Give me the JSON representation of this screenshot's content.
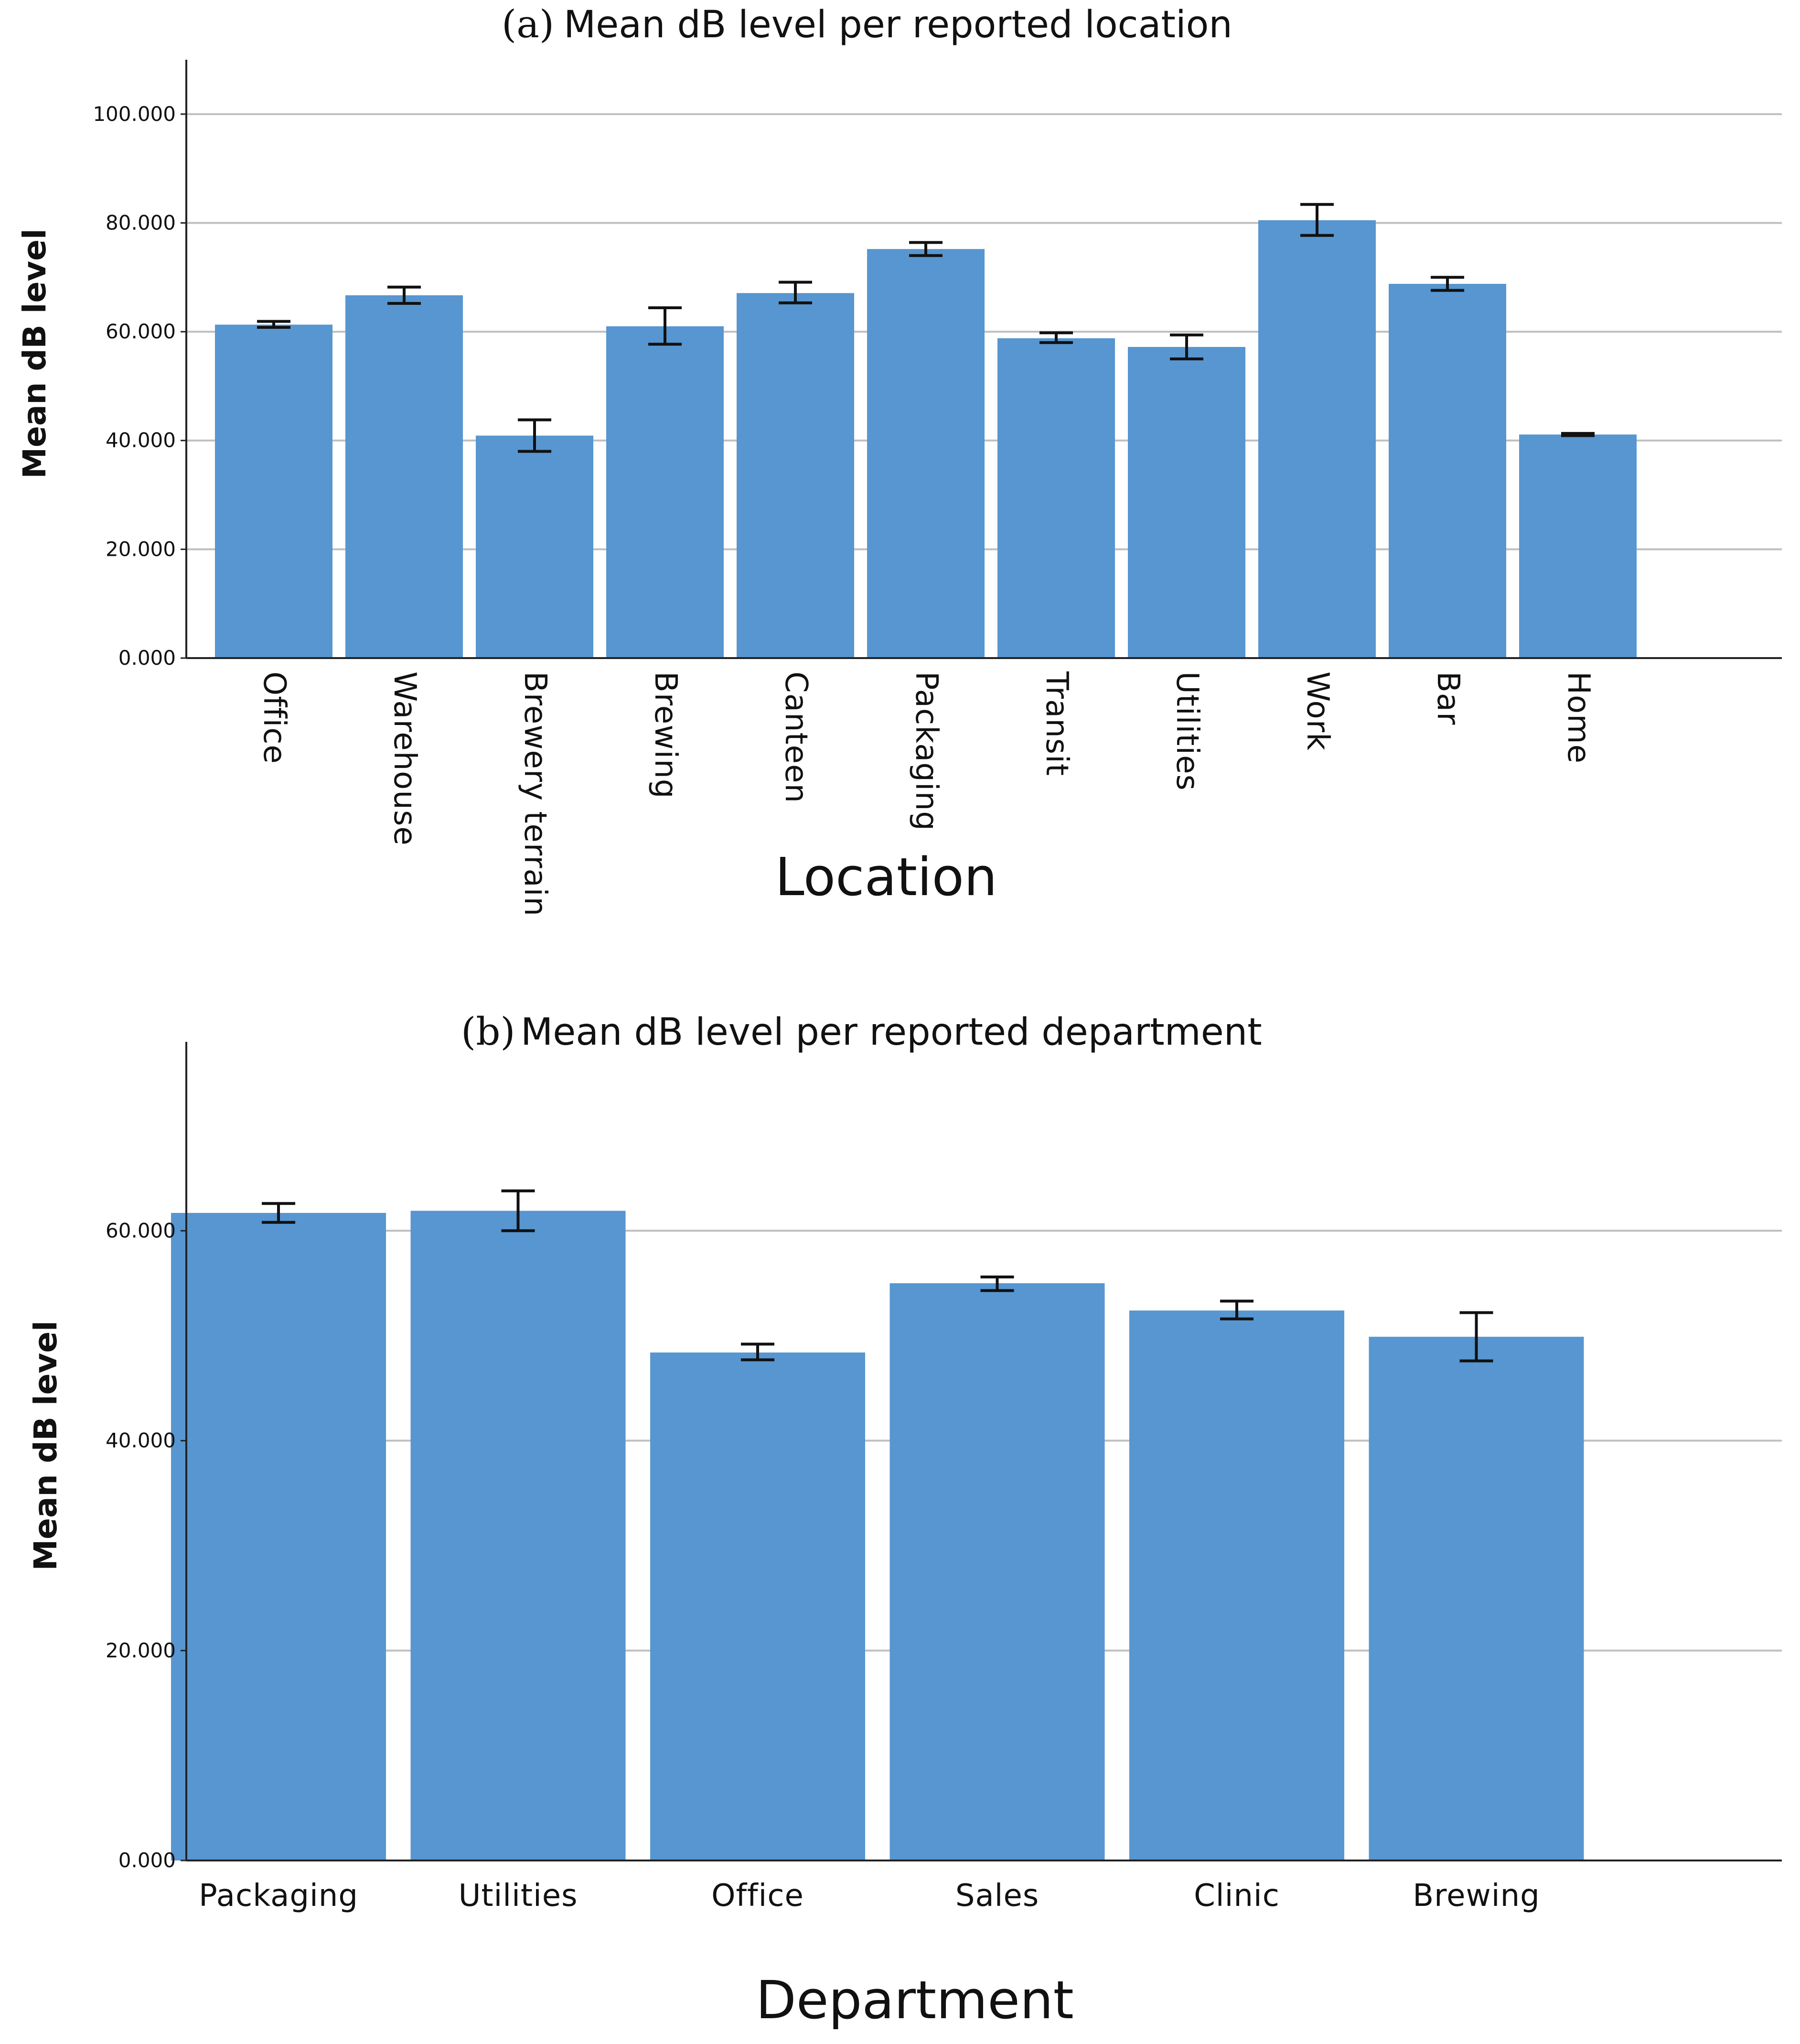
{
  "chart_data": [
    {
      "type": "bar",
      "panel": "(a)",
      "title": "Mean dB level per reported location",
      "xlabel": "Location",
      "ylabel": "Mean dB level",
      "ylim": [
        0,
        110
      ],
      "yticks": [
        0,
        20,
        40,
        60,
        80,
        100
      ],
      "ytick_labels": [
        "0.000",
        "20.000",
        "40.000",
        "60.000",
        "80.000",
        "100.000"
      ],
      "grid": true,
      "bar_color": "#5796d0",
      "categories": [
        "Office",
        "Warehouse",
        "Brewery terrain",
        "Brewing",
        "Canteen",
        "Packaging",
        "Transit",
        "Utilities",
        "Work",
        "Bar",
        "Home"
      ],
      "values": [
        61.3,
        66.7,
        40.9,
        61.0,
        67.1,
        75.2,
        58.8,
        57.2,
        80.5,
        68.8,
        41.1
      ],
      "error_low": [
        60.8,
        65.2,
        38.0,
        57.7,
        65.3,
        74.0,
        58.0,
        55.0,
        77.7,
        67.6,
        40.9
      ],
      "error_high": [
        61.9,
        68.2,
        43.8,
        64.4,
        69.1,
        76.4,
        59.8,
        59.4,
        83.4,
        70.0,
        41.3
      ]
    },
    {
      "type": "bar",
      "panel": "(b)",
      "title": "Mean dB level per reported department",
      "xlabel": "Department",
      "ylabel": "Mean dB level",
      "ylim": [
        0,
        78
      ],
      "yticks": [
        0,
        20,
        40,
        60
      ],
      "ytick_labels": [
        "0.000",
        "20.000",
        "40.000",
        "60.000"
      ],
      "grid": true,
      "bar_color": "#5796d0",
      "categories": [
        "Packaging",
        "Utilities",
        "Office",
        "Sales",
        "Clinic",
        "Brewing"
      ],
      "values": [
        61.7,
        61.9,
        48.4,
        55.0,
        52.4,
        49.9
      ],
      "error_low": [
        60.8,
        60.0,
        47.7,
        54.3,
        51.6,
        47.6
      ],
      "error_high": [
        62.6,
        63.8,
        49.2,
        55.6,
        53.3,
        52.2
      ]
    }
  ]
}
